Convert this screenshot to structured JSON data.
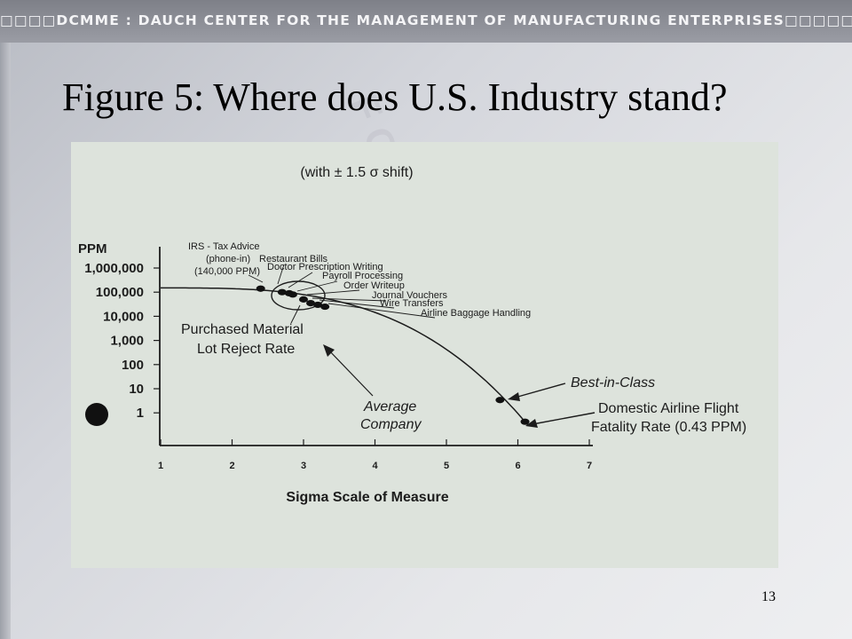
{
  "header": {
    "text": "DCMME : DAUCH CENTER FOR THE MANAGEMENT OF MANUFACTURING ENTERPRISES",
    "bullet_char": "□"
  },
  "slide": {
    "title": "Figure 5:  Where does U.S. Industry stand?",
    "page_number": "13"
  },
  "colors": {
    "header_bar": "#8a8c94",
    "figure_bg": "#dde3dc",
    "ink": "#1c1c1c"
  },
  "chart_data": {
    "type": "scatter",
    "title": "(with ± 1.5 σ shift)",
    "xlabel": "Sigma Scale of Measure",
    "ylabel": "PPM",
    "xlim": [
      1,
      7
    ],
    "x_ticks": [
      "1",
      "2",
      "3",
      "4",
      "5",
      "6",
      "7"
    ],
    "y_scale": "log",
    "y_ticks": [
      {
        "value": 1000000,
        "label": "1,000,000"
      },
      {
        "value": 100000,
        "label": "100,000"
      },
      {
        "value": 10000,
        "label": "10,000"
      },
      {
        "value": 1000,
        "label": "1,000"
      },
      {
        "value": 100,
        "label": "100"
      },
      {
        "value": 10,
        "label": "10"
      },
      {
        "value": 1,
        "label": "1"
      }
    ],
    "series": [
      {
        "points": [
          {
            "label": "IRS - Tax Advice (phone-in) (140,000 PPM)",
            "x": 2.4,
            "y": 140000
          },
          {
            "label": "Restaurant Bills",
            "x": 2.7,
            "y": 100000
          },
          {
            "label": "Doctor Prescription Writing",
            "x": 2.8,
            "y": 90000
          },
          {
            "label": "Payroll Processing",
            "x": 2.85,
            "y": 80000
          },
          {
            "label": "Order Writeup",
            "x": 3.0,
            "y": 50000
          },
          {
            "label": "Journal Vouchers",
            "x": 3.1,
            "y": 35000
          },
          {
            "label": "Wire Transfers",
            "x": 3.2,
            "y": 30000
          },
          {
            "label": "Airline Baggage Handling",
            "x": 3.3,
            "y": 25000
          },
          {
            "label": "Best-in-Class",
            "x": 5.75,
            "y": 3.4
          },
          {
            "label": "Domestic Airline Flight Fatality Rate (0.43 PPM)",
            "x": 6.1,
            "y": 0.43
          }
        ]
      }
    ],
    "curve_labels": {
      "purchased_material": [
        "Purchased Material",
        "Lot Reject Rate"
      ],
      "average_company": [
        "Average",
        "Company"
      ]
    },
    "point_labels": {
      "irs": [
        "IRS - Tax Advice",
        "(phone-in)",
        "(140,000 PPM)"
      ],
      "restaurant": "Restaurant Bills",
      "doctor": "Doctor Prescription Writing",
      "payroll": "Payroll Processing",
      "order": "Order Writeup",
      "journal": "Journal Vouchers",
      "wire": "Wire Transfers",
      "baggage": "Airline Baggage Handling",
      "best": "Best-in-Class",
      "fatality": [
        "Domestic Airline Flight",
        "Fatality Rate (0.43 PPM)"
      ]
    }
  }
}
